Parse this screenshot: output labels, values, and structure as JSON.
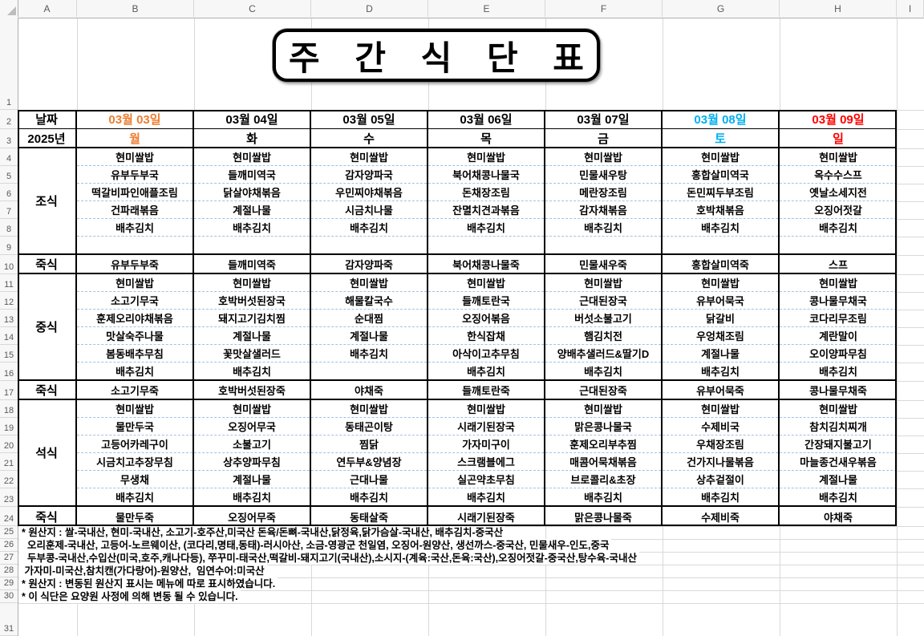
{
  "title": "주 간 식 단 표",
  "colors": {
    "monday_accent": "#ED7D31",
    "saturday_accent": "#00B0F0",
    "sunday_accent": "#FF0000",
    "dashed_separator": "#9DC3E6"
  },
  "sheet": {
    "column_letters": [
      "A",
      "B",
      "C",
      "D",
      "E",
      "F",
      "G",
      "H",
      "I"
    ],
    "row_numbers": [
      "1",
      "2",
      "3",
      "4",
      "5",
      "6",
      "7",
      "8",
      "9",
      "10",
      "11",
      "12",
      "13",
      "14",
      "15",
      "16",
      "17",
      "18",
      "19",
      "20",
      "21",
      "22",
      "23",
      "24",
      "25",
      "26",
      "27",
      "28",
      "29",
      "30",
      "31"
    ]
  },
  "header": {
    "date_label": "날짜",
    "year_label": "2025년",
    "days": [
      {
        "date": "03월 03일",
        "dow": "월",
        "color": "#ED7D31"
      },
      {
        "date": "03월 04일",
        "dow": "화",
        "color": "#000000"
      },
      {
        "date": "03월 05일",
        "dow": "수",
        "color": "#000000"
      },
      {
        "date": "03월 06일",
        "dow": "목",
        "color": "#000000"
      },
      {
        "date": "03월 07일",
        "dow": "금",
        "color": "#000000"
      },
      {
        "date": "03월 08일",
        "dow": "토",
        "color": "#00B0F0"
      },
      {
        "date": "03월 09일",
        "dow": "일",
        "color": "#FF0000"
      }
    ]
  },
  "sections": [
    {
      "label": "조식",
      "menus": [
        [
          "현미쌀밥",
          "유부두부국",
          "떡갈비파인애플조림",
          "건파래볶음",
          "배추김치",
          ""
        ],
        [
          "현미쌀밥",
          "들깨미역국",
          "닭살야채볶음",
          "계절나물",
          "배추김치",
          ""
        ],
        [
          "현미쌀밥",
          "감자양파국",
          "우민찌야채볶음",
          "시금치나물",
          "배추김치",
          ""
        ],
        [
          "현미쌀밥",
          "북어채콩나물국",
          "돈채장조림",
          "잔멸치견과볶음",
          "배추김치",
          ""
        ],
        [
          "현미쌀밥",
          "민물새우탕",
          "메란장조림",
          "감자채볶음",
          "배추김치",
          ""
        ],
        [
          "현미쌀밥",
          "홍합살미역국",
          "돈민찌두부조림",
          "호박채볶음",
          "배추김치",
          ""
        ],
        [
          "현미쌀밥",
          "옥수수스프",
          "옛날소세지전",
          "오징어젓갈",
          "배추김치",
          ""
        ]
      ],
      "porridge_label": "죽식",
      "porridge": [
        "유부두부죽",
        "들깨미역죽",
        "감자양파죽",
        "북어채콩나물죽",
        "민물새우죽",
        "홍합살미역죽",
        "스프"
      ]
    },
    {
      "label": "중식",
      "menus": [
        [
          "현미쌀밥",
          "소고기무국",
          "훈제오리야채볶음",
          "맛살숙주나물",
          "봄동배추무침",
          "배추김치"
        ],
        [
          "현미쌀밥",
          "호박버섯된장국",
          "돼지고기김치찜",
          "계절나물",
          "꽃맛살샐러드",
          "배추김치"
        ],
        [
          "현미쌀밥",
          "해물칼국수",
          "순대찜",
          "계절나물",
          "배추김치",
          ""
        ],
        [
          "현미쌀밥",
          "들깨토란국",
          "오징어볶음",
          "한식잡채",
          "아삭이고추무침",
          "배추김치"
        ],
        [
          "현미쌀밥",
          "근대된장국",
          "버섯소불고기",
          "햄김치전",
          "양배추샐러드&딸기D",
          "배추김치"
        ],
        [
          "현미쌀밥",
          "유부어묵국",
          "닭갈비",
          "우엉채조림",
          "계절나물",
          "배추김치"
        ],
        [
          "현미쌀밥",
          "콩나물무채국",
          "코다리무조림",
          "계란말이",
          "오이양파무침",
          "배추김치"
        ]
      ],
      "porridge_label": "죽식",
      "porridge": [
        "소고기무죽",
        "호박버섯된장죽",
        "야채죽",
        "들깨토란죽",
        "근대된장죽",
        "유부어묵죽",
        "콩나물무채죽"
      ]
    },
    {
      "label": "석식",
      "menus": [
        [
          "현미쌀밥",
          "물만두국",
          "고등어카레구이",
          "시금치고추장무침",
          "무생채",
          "배추김치"
        ],
        [
          "현미쌀밥",
          "오징어무국",
          "소불고기",
          "상추양파무침",
          "계절나물",
          "배추김치"
        ],
        [
          "현미쌀밥",
          "동태곤이탕",
          "찜닭",
          "연두부&양념장",
          "근대나물",
          "배추김치"
        ],
        [
          "현미쌀밥",
          "시래기된장국",
          "가자미구이",
          "스크램블에그",
          "실곤약초무침",
          "배추김치"
        ],
        [
          "현미쌀밥",
          "맑은콩나물국",
          "훈제오리부추찜",
          "매콤어묵채볶음",
          "브로콜리&초장",
          "배추김치"
        ],
        [
          "현미쌀밥",
          "수제비국",
          "우채장조림",
          "건가지나물볶음",
          "상추겉절이",
          "배추김치"
        ],
        [
          "현미쌀밥",
          "참치김치찌개",
          "간장돼지불고기",
          "마늘종건새우볶음",
          "계절나물",
          "배추김치"
        ]
      ],
      "porridge_label": "죽식",
      "porridge": [
        "물만두죽",
        "오징어무죽",
        "동태살죽",
        "시래기된장죽",
        "맑은콩나물죽",
        "수제비죽",
        "야채죽"
      ]
    }
  ],
  "footnotes": [
    "* 원산지 : 쌀-국내산, 현미-국내산, 소고기-호주산,미국산 돈육/돈뼈-국내산,닭정육,닭가슴살-국내산, 배추김치-중국산",
    "  오리훈제-국내산, 고등어-노르웨이산, (코다리,명태,동태)-러시아산, 소금-영광군 천일염, 오징어-원양산, 생선까스-중국산, 민물새우-인도,중국",
    "  두부콩-국내산,수입산(미국,호주,캐나다등), 쭈꾸미-태국산,떡갈비-돼지고기(국내산),소시지-(계육:국산,돈육:국산),오징어젓갈-중국산,탕수육-국내산",
    " 가자미-미국산,참치캔(가다랑어)-원양산,  임연수어:미국산",
    "* 원산지 : 변동된 원산지 표시는 메뉴에 따로 표시하였습니다.",
    "* 이 식단은 요양원 사정에 의해 변동 될 수 있습니다."
  ]
}
